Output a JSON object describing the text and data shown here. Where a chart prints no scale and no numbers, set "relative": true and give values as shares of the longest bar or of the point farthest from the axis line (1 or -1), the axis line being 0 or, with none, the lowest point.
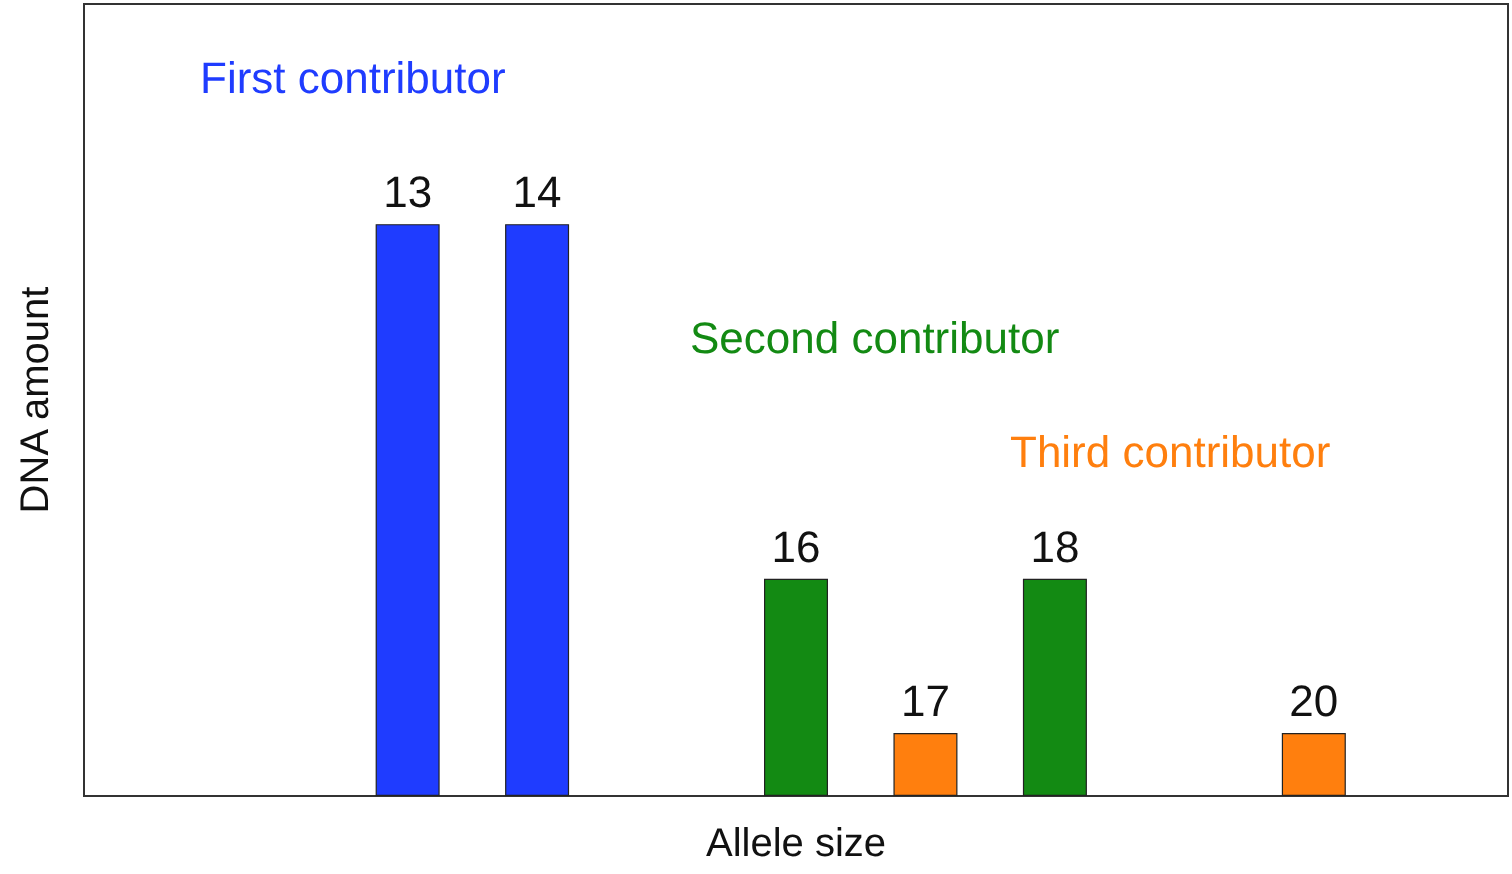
{
  "chart_data": {
    "type": "bar",
    "xlabel": "Allele size",
    "ylabel": "DNA amount",
    "relative": true,
    "legend": false,
    "grid": false,
    "categories": [
      null,
      null,
      "13",
      "14",
      null,
      "16",
      "17",
      "18",
      null,
      "20",
      null
    ],
    "series": [
      {
        "name": "First contributor",
        "color": "#1f3cff",
        "values": [
          null,
          null,
          1,
          1,
          null,
          null,
          null,
          null,
          null,
          null,
          null
        ]
      },
      {
        "name": "Second contributor",
        "color": "#138a13",
        "values": [
          null,
          null,
          null,
          null,
          null,
          0.38,
          null,
          0.38,
          null,
          null,
          null
        ]
      },
      {
        "name": "Third contributor",
        "color": "#ff7f0e",
        "values": [
          null,
          null,
          null,
          null,
          null,
          null,
          0.11,
          null,
          null,
          0.11,
          null
        ]
      }
    ]
  }
}
